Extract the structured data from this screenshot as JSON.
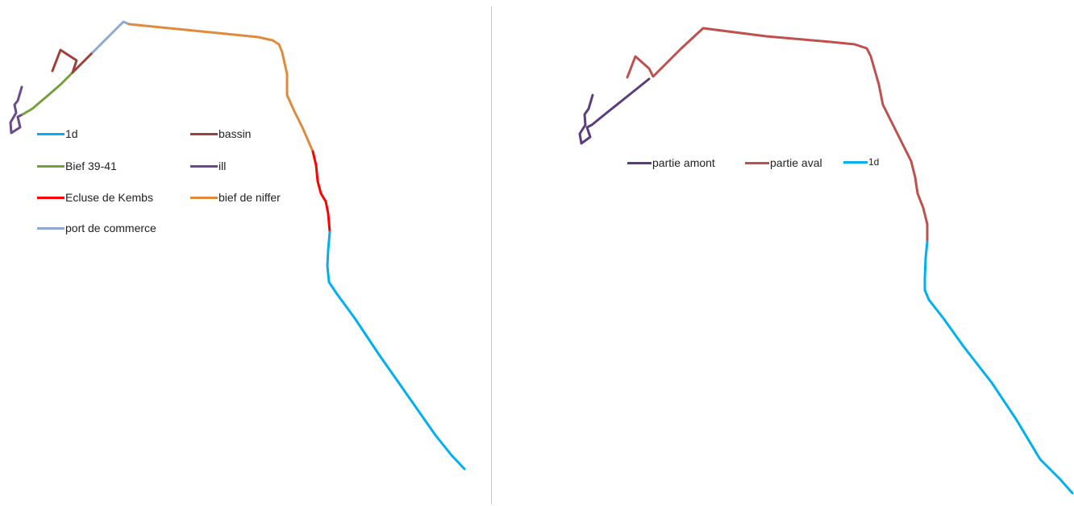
{
  "left_map": {
    "legend": [
      {
        "id": "1d",
        "label": "1d",
        "color": "#00b0f0"
      },
      {
        "id": "bassin",
        "label": "bassin",
        "color": "#a0403c"
      },
      {
        "id": "bief-39-41",
        "label": "Bief 39-41",
        "color": "#76a03c"
      },
      {
        "id": "ill",
        "label": "ill",
        "color": "#6a4a8f"
      },
      {
        "id": "ecluse-de-kembs",
        "label": "Ecluse de Kembs",
        "color": "#ff0000"
      },
      {
        "id": "bief-de-niffer",
        "label": "bief de niffer",
        "color": "#e08a3c"
      },
      {
        "id": "port-de-commerce",
        "label": "port de commerce",
        "color": "#8fa9d6"
      }
    ]
  },
  "right_map": {
    "legend": [
      {
        "id": "partie-amont",
        "label": "partie amont",
        "color": "#5a3d7f"
      },
      {
        "id": "partie-aval",
        "label": "partie aval",
        "color": "#c0504d"
      },
      {
        "id": "1d",
        "label": "1d",
        "color": "#00b0f0"
      }
    ]
  }
}
